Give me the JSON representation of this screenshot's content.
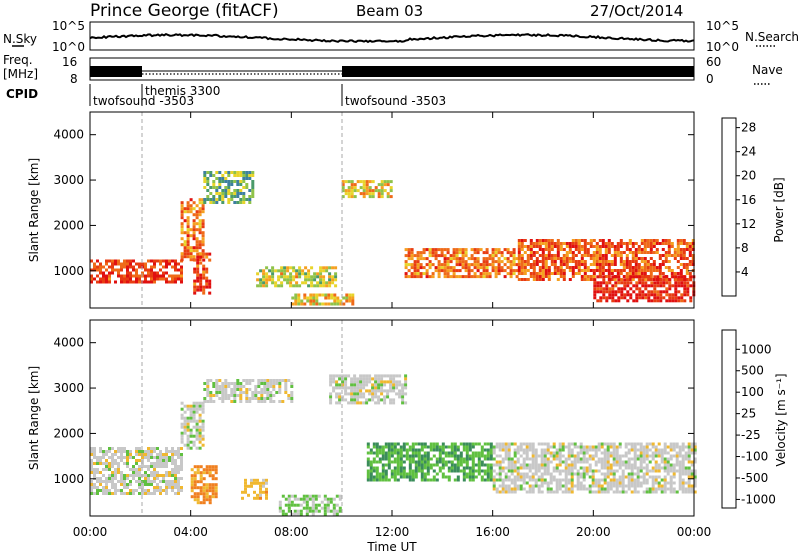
{
  "header": {
    "station": "Prince George (fitACF)",
    "beam": "Beam 03",
    "date": "27/Oct/2014"
  },
  "ancillary": {
    "nsky_label": "N.Sky",
    "nsky_ticks": [
      "10^5",
      "10^0"
    ],
    "nsearch_label": "N.Search",
    "nsearch_ticks": [
      "10^5",
      "10^0"
    ],
    "freq_label_1": "Freq.",
    "freq_label_2": "[MHz]",
    "freq_ticks": [
      "16",
      "8"
    ],
    "nave_label": "Nave",
    "nave_ticks": [
      "60",
      "0"
    ],
    "cpid_label": "CPID",
    "cpid_segments": [
      {
        "name": "twofsound -3503",
        "start_hour": 0,
        "end_hour": 2
      },
      {
        "name": "themis 3300",
        "start_hour": 2,
        "end_hour": 10
      },
      {
        "name": "twofsound -3503",
        "start_hour": 10,
        "end_hour": 24
      }
    ]
  },
  "x_axis": {
    "label": "Time UT",
    "ticks": [
      "00:00",
      "04:00",
      "08:00",
      "12:00",
      "16:00",
      "20:00",
      "00:00"
    ],
    "range_hours": [
      0,
      24
    ]
  },
  "panels": [
    {
      "id": "power",
      "ylabel": "Slant Range [km]",
      "yticks": [
        "1000",
        "2000",
        "3000",
        "4000"
      ],
      "colorbar_label": "Power [dB]",
      "colorbar_ticks": [
        "4",
        "8",
        "12",
        "16",
        "20",
        "24",
        "28"
      ],
      "colors": [
        "#1a1aff",
        "#2c45b8",
        "#3d7fa0",
        "#4a9a6a",
        "#8fc24a",
        "#e8d42a",
        "#f5a020",
        "#ef6a18",
        "#e83c12",
        "#e01010"
      ]
    },
    {
      "id": "velocity",
      "ylabel": "Slant Range [km]",
      "yticks": [
        "1000",
        "2000",
        "3000",
        "4000"
      ],
      "colorbar_label": "Velocity [m s⁻¹]",
      "colorbar_ticks": [
        "1000",
        "500",
        "100",
        "25",
        "-25",
        "-100",
        "-500",
        "-1000"
      ],
      "colors": [
        "#2a4aaa",
        "#2c8a8a",
        "#3a8c5a",
        "#60c040",
        "#c8c8c8",
        "#f0b830",
        "#f08020",
        "#e84a14",
        "#e01010"
      ]
    }
  ],
  "chart_data": {
    "type": "heatmap",
    "x_label": "Time UT",
    "x_range_hours": [
      0,
      24
    ],
    "y_label": "Slant Range [km]",
    "y_range_km": [
      180,
      4500
    ],
    "series": [
      {
        "name": "Power [dB]",
        "scale": [
          0,
          30
        ],
        "features": [
          {
            "t0": 0.0,
            "t1": 3.6,
            "r0": 750,
            "r1": 1250,
            "level": 26
          },
          {
            "t0": 3.6,
            "t1": 4.5,
            "r0": 1250,
            "r1": 2600,
            "level": 22
          },
          {
            "t0": 4.5,
            "t1": 6.5,
            "r0": 2500,
            "r1": 3200,
            "level": 12
          },
          {
            "t0": 4.1,
            "t1": 4.8,
            "r0": 500,
            "r1": 1400,
            "level": 26
          },
          {
            "t0": 6.6,
            "t1": 9.8,
            "r0": 700,
            "r1": 1100,
            "level": 16
          },
          {
            "t0": 8.0,
            "t1": 10.5,
            "r0": 250,
            "r1": 500,
            "level": 18
          },
          {
            "t0": 10.0,
            "t1": 12.0,
            "r0": 2650,
            "r1": 3000,
            "level": 18
          },
          {
            "t0": 12.5,
            "t1": 17.0,
            "r0": 900,
            "r1": 1500,
            "level": 22
          },
          {
            "t0": 17.0,
            "t1": 24.0,
            "r0": 800,
            "r1": 1700,
            "level": 24
          },
          {
            "t0": 20.0,
            "t1": 24.0,
            "r0": 350,
            "r1": 900,
            "level": 28
          }
        ]
      },
      {
        "name": "Velocity [m s-1]",
        "scale": [
          -1000,
          1000
        ],
        "features": [
          {
            "t0": 0.0,
            "t1": 3.6,
            "r0": 700,
            "r1": 1700,
            "level": 0
          },
          {
            "t0": 3.6,
            "t1": 4.5,
            "r0": 1700,
            "r1": 2700,
            "level": 0
          },
          {
            "t0": 4.5,
            "t1": 8.0,
            "r0": 2700,
            "r1": 3200,
            "level": 0
          },
          {
            "t0": 4.0,
            "t1": 5.0,
            "r0": 500,
            "r1": 1300,
            "level": -400
          },
          {
            "t0": 7.5,
            "t1": 10.0,
            "r0": 250,
            "r1": 650,
            "level": 120
          },
          {
            "t0": 9.5,
            "t1": 12.5,
            "r0": 2650,
            "r1": 3300,
            "level": 0
          },
          {
            "t0": 11.0,
            "t1": 16.0,
            "r0": 1000,
            "r1": 1800,
            "level": 300
          },
          {
            "t0": 16.0,
            "t1": 24.0,
            "r0": 700,
            "r1": 1800,
            "level": 0
          },
          {
            "t0": 6.0,
            "t1": 7.0,
            "r0": 600,
            "r1": 1000,
            "level": -200
          }
        ]
      }
    ]
  }
}
